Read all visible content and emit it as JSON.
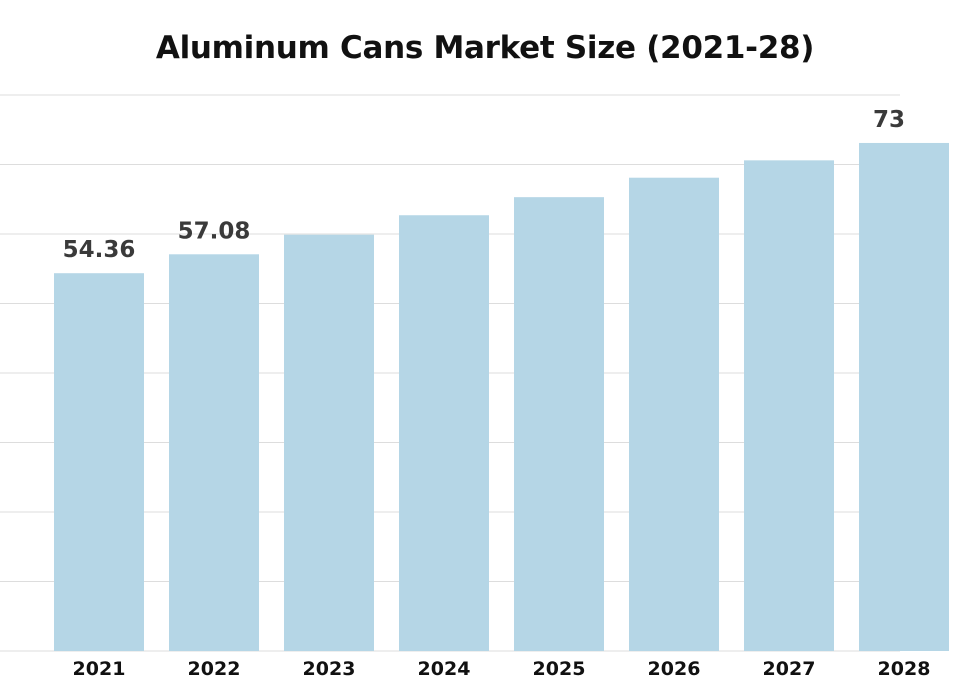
{
  "chart_data": {
    "type": "bar",
    "title": "Aluminum Cans Market Size (2021-28)",
    "xlabel": "",
    "ylabel": "",
    "categories": [
      "2021",
      "2022",
      "2023",
      "2024",
      "2025",
      "2026",
      "2027",
      "2028"
    ],
    "values": [
      54.36,
      57.08,
      59.9,
      62.7,
      65.3,
      68.1,
      70.6,
      73.1
    ],
    "data_labels": [
      "54.36",
      "57.08",
      "",
      "",
      "",
      "",
      "",
      "73"
    ],
    "ylim": [
      0,
      80
    ],
    "grid": true,
    "legend": "none",
    "colors": {
      "bar": "#b5d6e6",
      "grid": "#dddddd",
      "label": "#3a3a3a",
      "axis_text": "#111111"
    }
  }
}
